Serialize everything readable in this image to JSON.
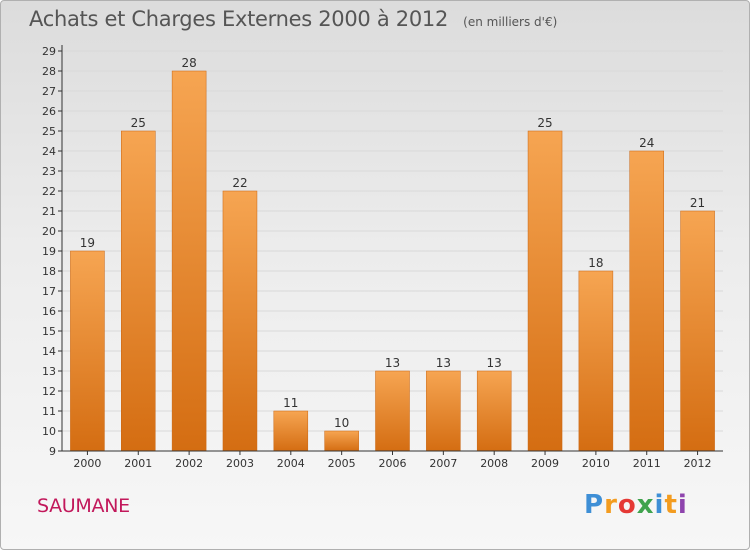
{
  "header": {
    "title": "Achats et Charges Externes 2000 à 2012",
    "unit": "(en milliers d'€)"
  },
  "footer": {
    "commune": "SAUMANE",
    "logo_letters": [
      "P",
      "r",
      "o",
      "x",
      "i",
      "t",
      "i"
    ],
    "logo_colors": [
      "#3e8fd6",
      "#f39c1f",
      "#e53935",
      "#3fa34d",
      "#3e8fd6",
      "#f39c1f",
      "#8e44ad"
    ]
  },
  "colors": {
    "bar_top": "#f6a552",
    "bar_bottom": "#d46d12",
    "axis": "#333333",
    "grid": "#d9d9d9",
    "text": "#333333"
  },
  "chart_data": {
    "type": "bar",
    "title": "Achats et Charges Externes 2000 à 2012",
    "subtitle": "(en milliers d'€)",
    "categories": [
      "2000",
      "2001",
      "2002",
      "2003",
      "2004",
      "2005",
      "2006",
      "2007",
      "2008",
      "2009",
      "2010",
      "2011",
      "2012"
    ],
    "values": [
      19,
      25,
      28,
      22,
      11,
      10,
      13,
      13,
      13,
      25,
      18,
      24,
      21
    ],
    "ylim": [
      9,
      29
    ],
    "yticks": [
      9,
      10,
      11,
      12,
      13,
      14,
      15,
      16,
      17,
      18,
      19,
      20,
      21,
      22,
      23,
      24,
      25,
      26,
      27,
      28,
      29
    ],
    "grid": true,
    "legend": "none"
  }
}
